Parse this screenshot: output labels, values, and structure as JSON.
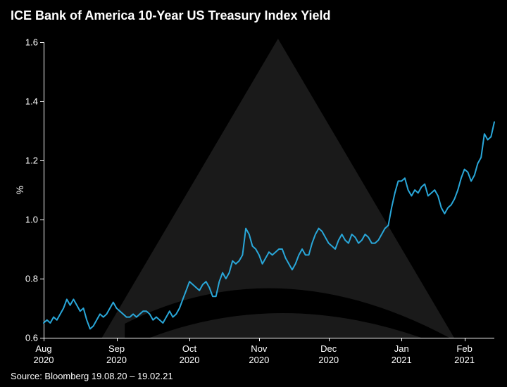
{
  "title": "ICE Bank of America 10-Year US Treasury Index Yield",
  "source": "Source: Bloomberg 19.08.20 – 19.02.21",
  "chart": {
    "type": "line",
    "background_color": "#000000",
    "line_color": "#29a7d9",
    "line_width": 2,
    "axis_color": "#ffffff",
    "text_color": "#ffffff",
    "watermark_color": "#1a1a1a",
    "ylabel": "%",
    "ylim": [
      0.6,
      1.6
    ],
    "ytick_step": 0.2,
    "yticks": [
      0.6,
      0.8,
      1.0,
      1.2,
      1.4,
      1.6
    ],
    "ytick_labels": [
      "0.6",
      "0.8",
      "1.0",
      "1.2",
      "1.4",
      "1.6"
    ],
    "xticks_idx": [
      0,
      22,
      44,
      65,
      86,
      108,
      127
    ],
    "xtick_labels": [
      {
        "month": "Aug",
        "year": "2020"
      },
      {
        "month": "Sep",
        "year": "2020"
      },
      {
        "month": "Oct",
        "year": "2020"
      },
      {
        "month": "Nov",
        "year": "2020"
      },
      {
        "month": "Dec",
        "year": "2020"
      },
      {
        "month": "Jan",
        "year": "2021"
      },
      {
        "month": "Feb",
        "year": "2021"
      }
    ],
    "title_fontsize": 18,
    "label_fontsize": 14,
    "tick_fontsize": 13,
    "values": [
      0.65,
      0.66,
      0.65,
      0.67,
      0.66,
      0.68,
      0.7,
      0.73,
      0.71,
      0.73,
      0.71,
      0.69,
      0.7,
      0.66,
      0.63,
      0.64,
      0.66,
      0.68,
      0.67,
      0.68,
      0.7,
      0.72,
      0.7,
      0.69,
      0.68,
      0.67,
      0.67,
      0.68,
      0.67,
      0.68,
      0.69,
      0.69,
      0.68,
      0.66,
      0.67,
      0.66,
      0.65,
      0.67,
      0.69,
      0.67,
      0.68,
      0.7,
      0.73,
      0.76,
      0.79,
      0.78,
      0.77,
      0.76,
      0.78,
      0.79,
      0.77,
      0.74,
      0.74,
      0.79,
      0.82,
      0.8,
      0.82,
      0.86,
      0.85,
      0.86,
      0.88,
      0.97,
      0.95,
      0.91,
      0.9,
      0.88,
      0.85,
      0.87,
      0.89,
      0.88,
      0.89,
      0.9,
      0.9,
      0.87,
      0.85,
      0.83,
      0.85,
      0.88,
      0.9,
      0.88,
      0.88,
      0.92,
      0.95,
      0.97,
      0.96,
      0.94,
      0.92,
      0.91,
      0.9,
      0.93,
      0.95,
      0.93,
      0.92,
      0.95,
      0.94,
      0.92,
      0.93,
      0.95,
      0.94,
      0.92,
      0.92,
      0.93,
      0.95,
      0.97,
      0.98,
      1.04,
      1.09,
      1.13,
      1.13,
      1.14,
      1.1,
      1.08,
      1.1,
      1.09,
      1.11,
      1.12,
      1.08,
      1.09,
      1.1,
      1.08,
      1.04,
      1.02,
      1.04,
      1.05,
      1.07,
      1.1,
      1.14,
      1.17,
      1.16,
      1.13,
      1.15,
      1.19,
      1.21,
      1.29,
      1.27,
      1.28,
      1.33
    ]
  }
}
